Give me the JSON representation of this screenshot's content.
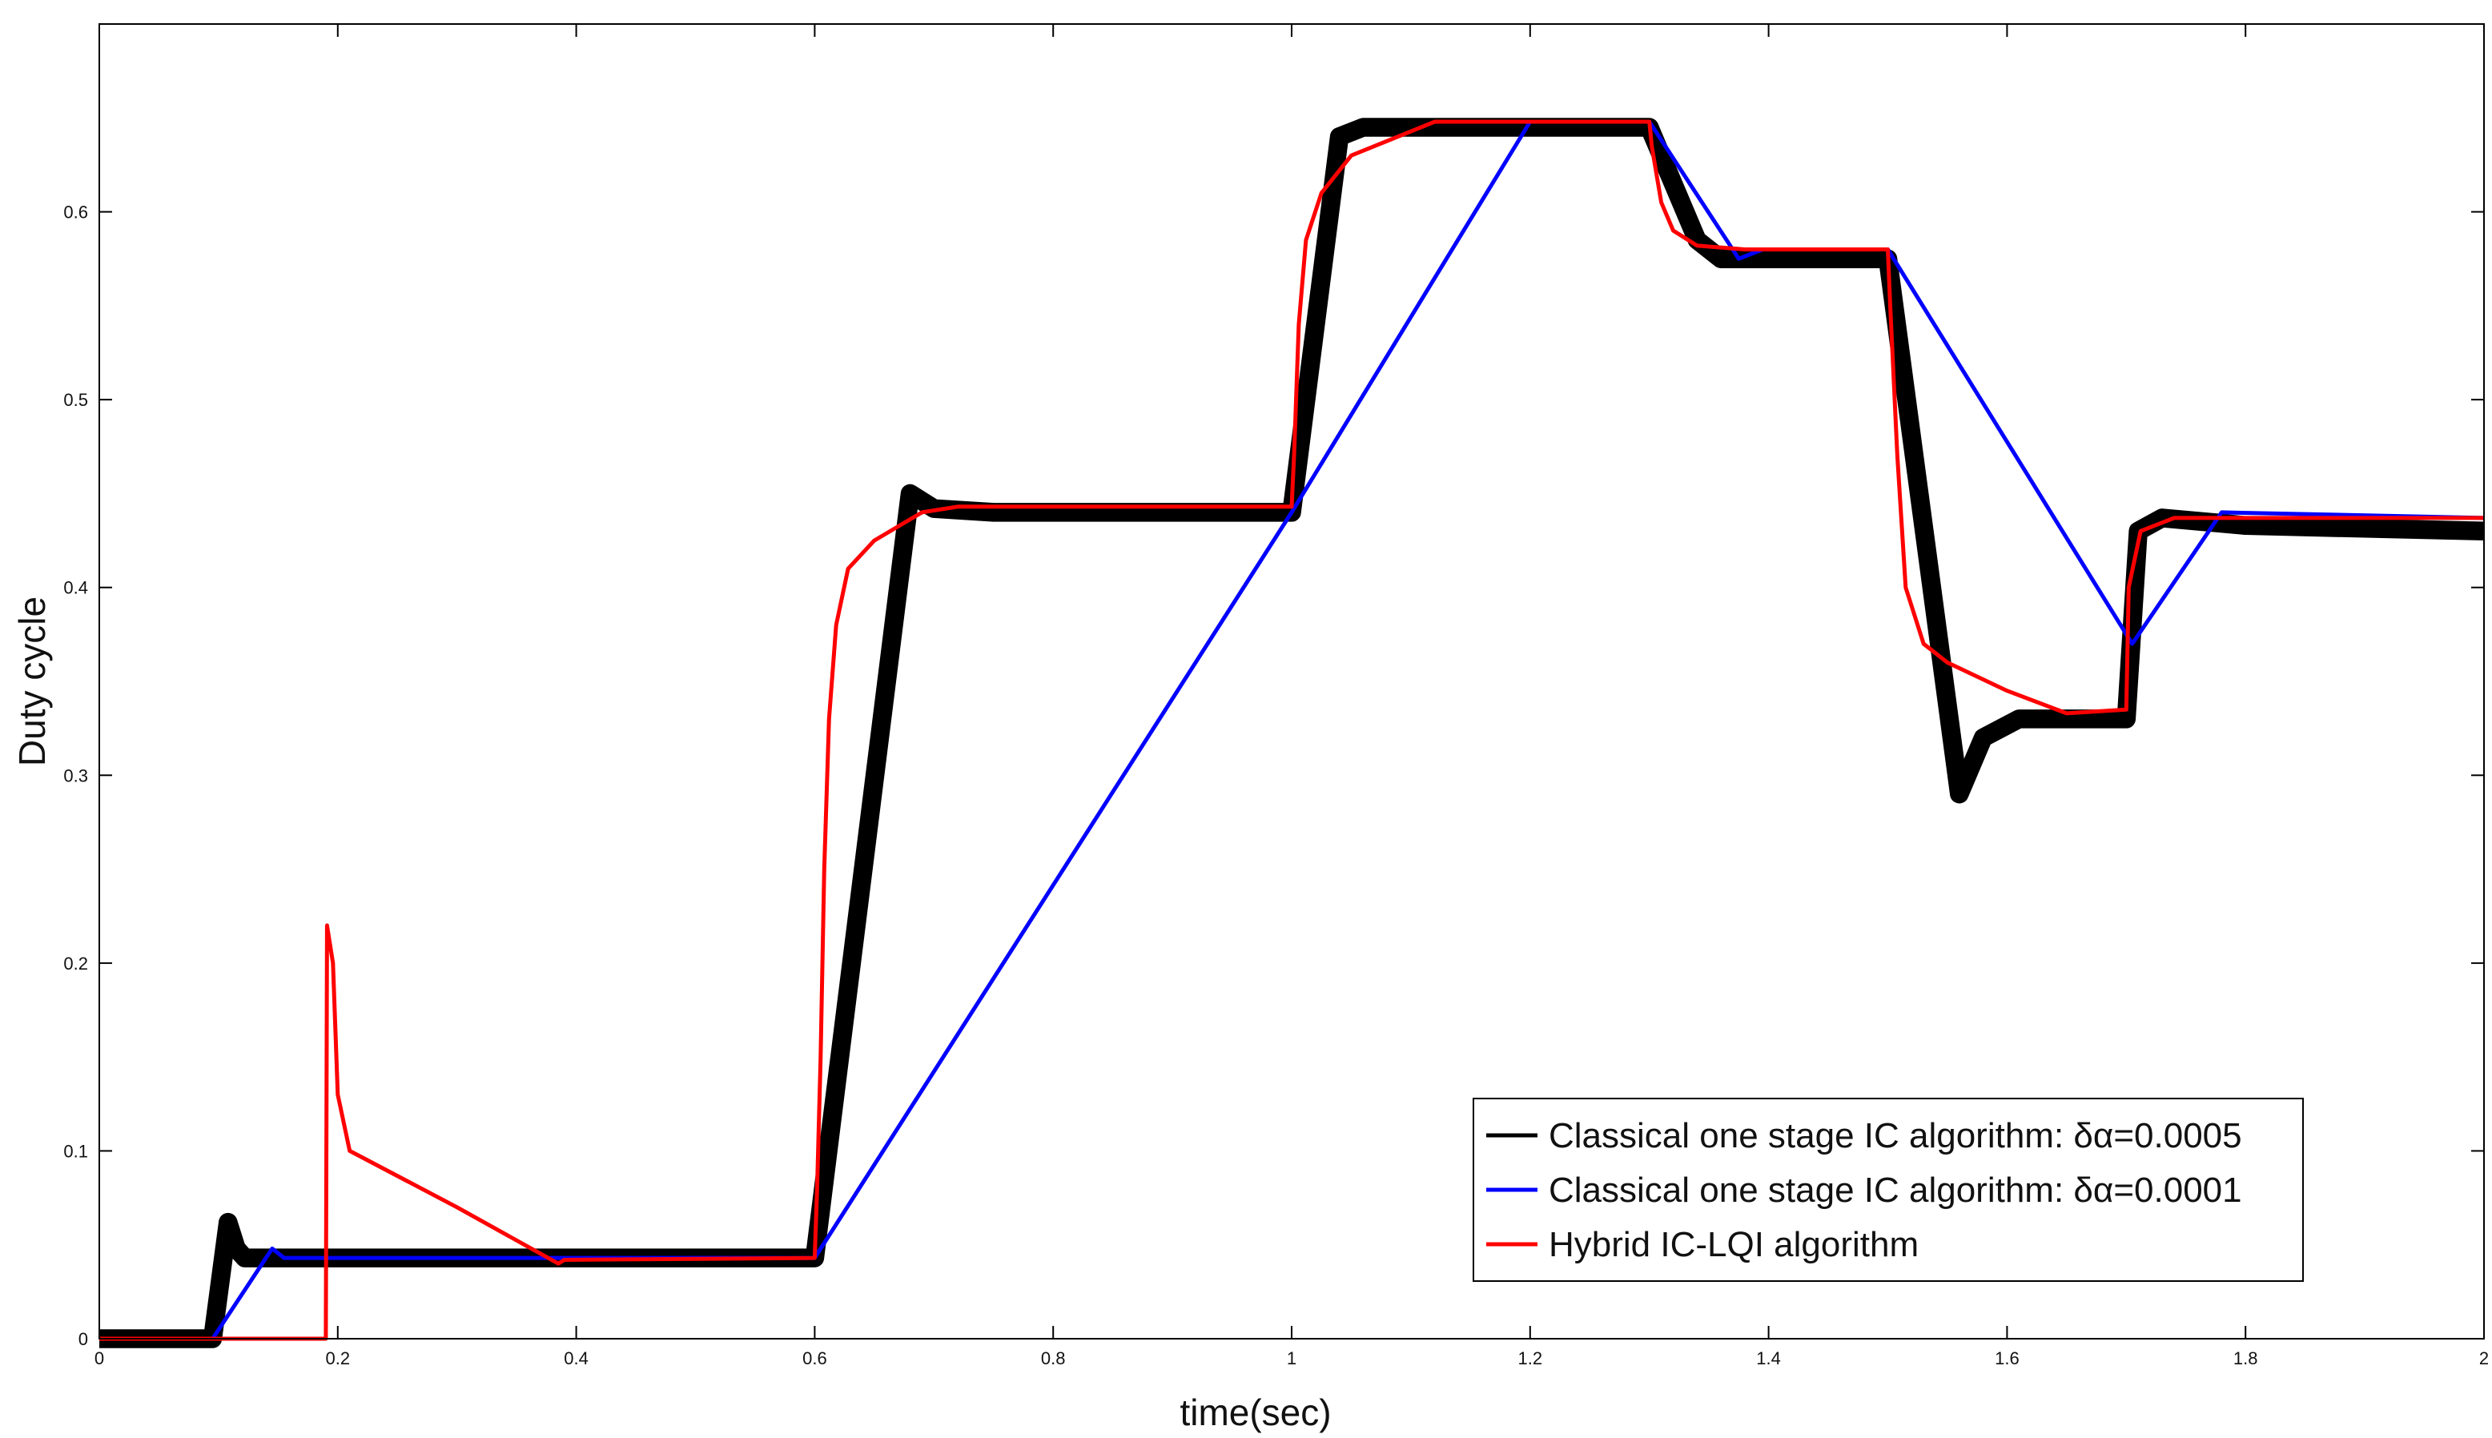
{
  "chart_data": {
    "type": "line",
    "xlabel": "time(sec)",
    "ylabel": "Duty cycle",
    "xlim": [
      0,
      2
    ],
    "ylim": [
      0,
      0.7
    ],
    "x_ticks": [
      "0",
      "0.2",
      "0.4",
      "0.6",
      "0.8",
      "1",
      "1.2",
      "1.4",
      "1.6",
      "1.8",
      "2"
    ],
    "y_ticks": [
      "0",
      "0.1",
      "0.2",
      "0.3",
      "0.4",
      "0.5",
      "0.6"
    ],
    "grid": false,
    "legend_position": "bottom-right",
    "series": [
      {
        "name": "Classical one stage IC algorithm: δα=0.0005",
        "color": "#000000",
        "oscillation": 0.005,
        "points": [
          [
            0,
            0
          ],
          [
            0.095,
            0
          ],
          [
            0.108,
            0.062
          ],
          [
            0.115,
            0.048
          ],
          [
            0.122,
            0.043
          ],
          [
            0.6,
            0.043
          ],
          [
            0.68,
            0.45
          ],
          [
            0.7,
            0.442
          ],
          [
            0.75,
            0.44
          ],
          [
            1.0,
            0.44
          ],
          [
            1.04,
            0.64
          ],
          [
            1.06,
            0.645
          ],
          [
            1.3,
            0.645
          ],
          [
            1.34,
            0.585
          ],
          [
            1.36,
            0.575
          ],
          [
            1.5,
            0.575
          ],
          [
            1.56,
            0.29
          ],
          [
            1.58,
            0.32
          ],
          [
            1.61,
            0.33
          ],
          [
            1.7,
            0.33
          ],
          [
            1.71,
            0.43
          ],
          [
            1.73,
            0.437
          ],
          [
            1.8,
            0.433
          ],
          [
            2.0,
            0.43
          ]
        ]
      },
      {
        "name": "Classical one stage IC algorithm: δα=0.0001",
        "color": "#0000ff",
        "points": [
          [
            0,
            0
          ],
          [
            0.095,
            0
          ],
          [
            0.145,
            0.048
          ],
          [
            0.155,
            0.043
          ],
          [
            0.6,
            0.043
          ],
          [
            1.0,
            0.44
          ],
          [
            1.2,
            0.648
          ],
          [
            1.3,
            0.648
          ],
          [
            1.375,
            0.575
          ],
          [
            1.395,
            0.58
          ],
          [
            1.5,
            0.58
          ],
          [
            1.705,
            0.37
          ],
          [
            1.78,
            0.44
          ],
          [
            2.0,
            0.437
          ]
        ]
      },
      {
        "name": "Hybrid IC-LQI algorithm",
        "color": "#ff0000",
        "points": [
          [
            0,
            0
          ],
          [
            0.19,
            0
          ],
          [
            0.191,
            0.22
          ],
          [
            0.196,
            0.2
          ],
          [
            0.2,
            0.13
          ],
          [
            0.21,
            0.1
          ],
          [
            0.3,
            0.07
          ],
          [
            0.385,
            0.04
          ],
          [
            0.39,
            0.042
          ],
          [
            0.6,
            0.043
          ],
          [
            0.602,
            0.08
          ],
          [
            0.605,
            0.15
          ],
          [
            0.608,
            0.25
          ],
          [
            0.612,
            0.33
          ],
          [
            0.618,
            0.38
          ],
          [
            0.628,
            0.41
          ],
          [
            0.65,
            0.425
          ],
          [
            0.69,
            0.44
          ],
          [
            0.72,
            0.443
          ],
          [
            1.0,
            0.443
          ],
          [
            1.002,
            0.47
          ],
          [
            1.006,
            0.54
          ],
          [
            1.012,
            0.585
          ],
          [
            1.025,
            0.61
          ],
          [
            1.05,
            0.63
          ],
          [
            1.12,
            0.648
          ],
          [
            1.3,
            0.648
          ],
          [
            1.302,
            0.635
          ],
          [
            1.31,
            0.605
          ],
          [
            1.32,
            0.59
          ],
          [
            1.34,
            0.582
          ],
          [
            1.38,
            0.58
          ],
          [
            1.5,
            0.58
          ],
          [
            1.502,
            0.55
          ],
          [
            1.508,
            0.47
          ],
          [
            1.515,
            0.4
          ],
          [
            1.53,
            0.37
          ],
          [
            1.55,
            0.36
          ],
          [
            1.6,
            0.345
          ],
          [
            1.65,
            0.333
          ],
          [
            1.7,
            0.335
          ],
          [
            1.702,
            0.4
          ],
          [
            1.712,
            0.43
          ],
          [
            1.74,
            0.437
          ],
          [
            2.0,
            0.437
          ]
        ]
      }
    ]
  }
}
